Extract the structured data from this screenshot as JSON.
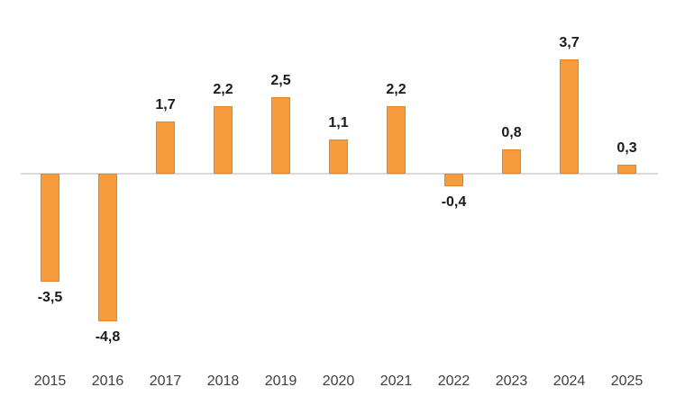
{
  "chart_data": {
    "type": "bar",
    "title": "",
    "xlabel": "",
    "ylabel": "",
    "categories": [
      "2015",
      "2016",
      "2017",
      "2018",
      "2019",
      "2020",
      "2021",
      "2022",
      "2023",
      "2024",
      "2025"
    ],
    "values": [
      -3.5,
      -4.8,
      1.7,
      2.2,
      2.5,
      1.1,
      2.2,
      -0.4,
      0.8,
      3.7,
      0.3
    ],
    "value_labels": [
      "-3,5",
      "-4,8",
      "1,7",
      "2,2",
      "2,5",
      "1,1",
      "2,2",
      "-0,4",
      "0,8",
      "3,7",
      "0,3"
    ],
    "decimal_separator": ",",
    "ylim": [
      -5,
      4
    ],
    "grid": false,
    "legend": false,
    "colors": {
      "bar_fill": "#F79C3D",
      "bar_border": "#E2862C",
      "data_label": "#1A1A1A",
      "axis_label": "#404040",
      "baseline": "#D9D9D9",
      "background": "#FFFFFF"
    }
  }
}
